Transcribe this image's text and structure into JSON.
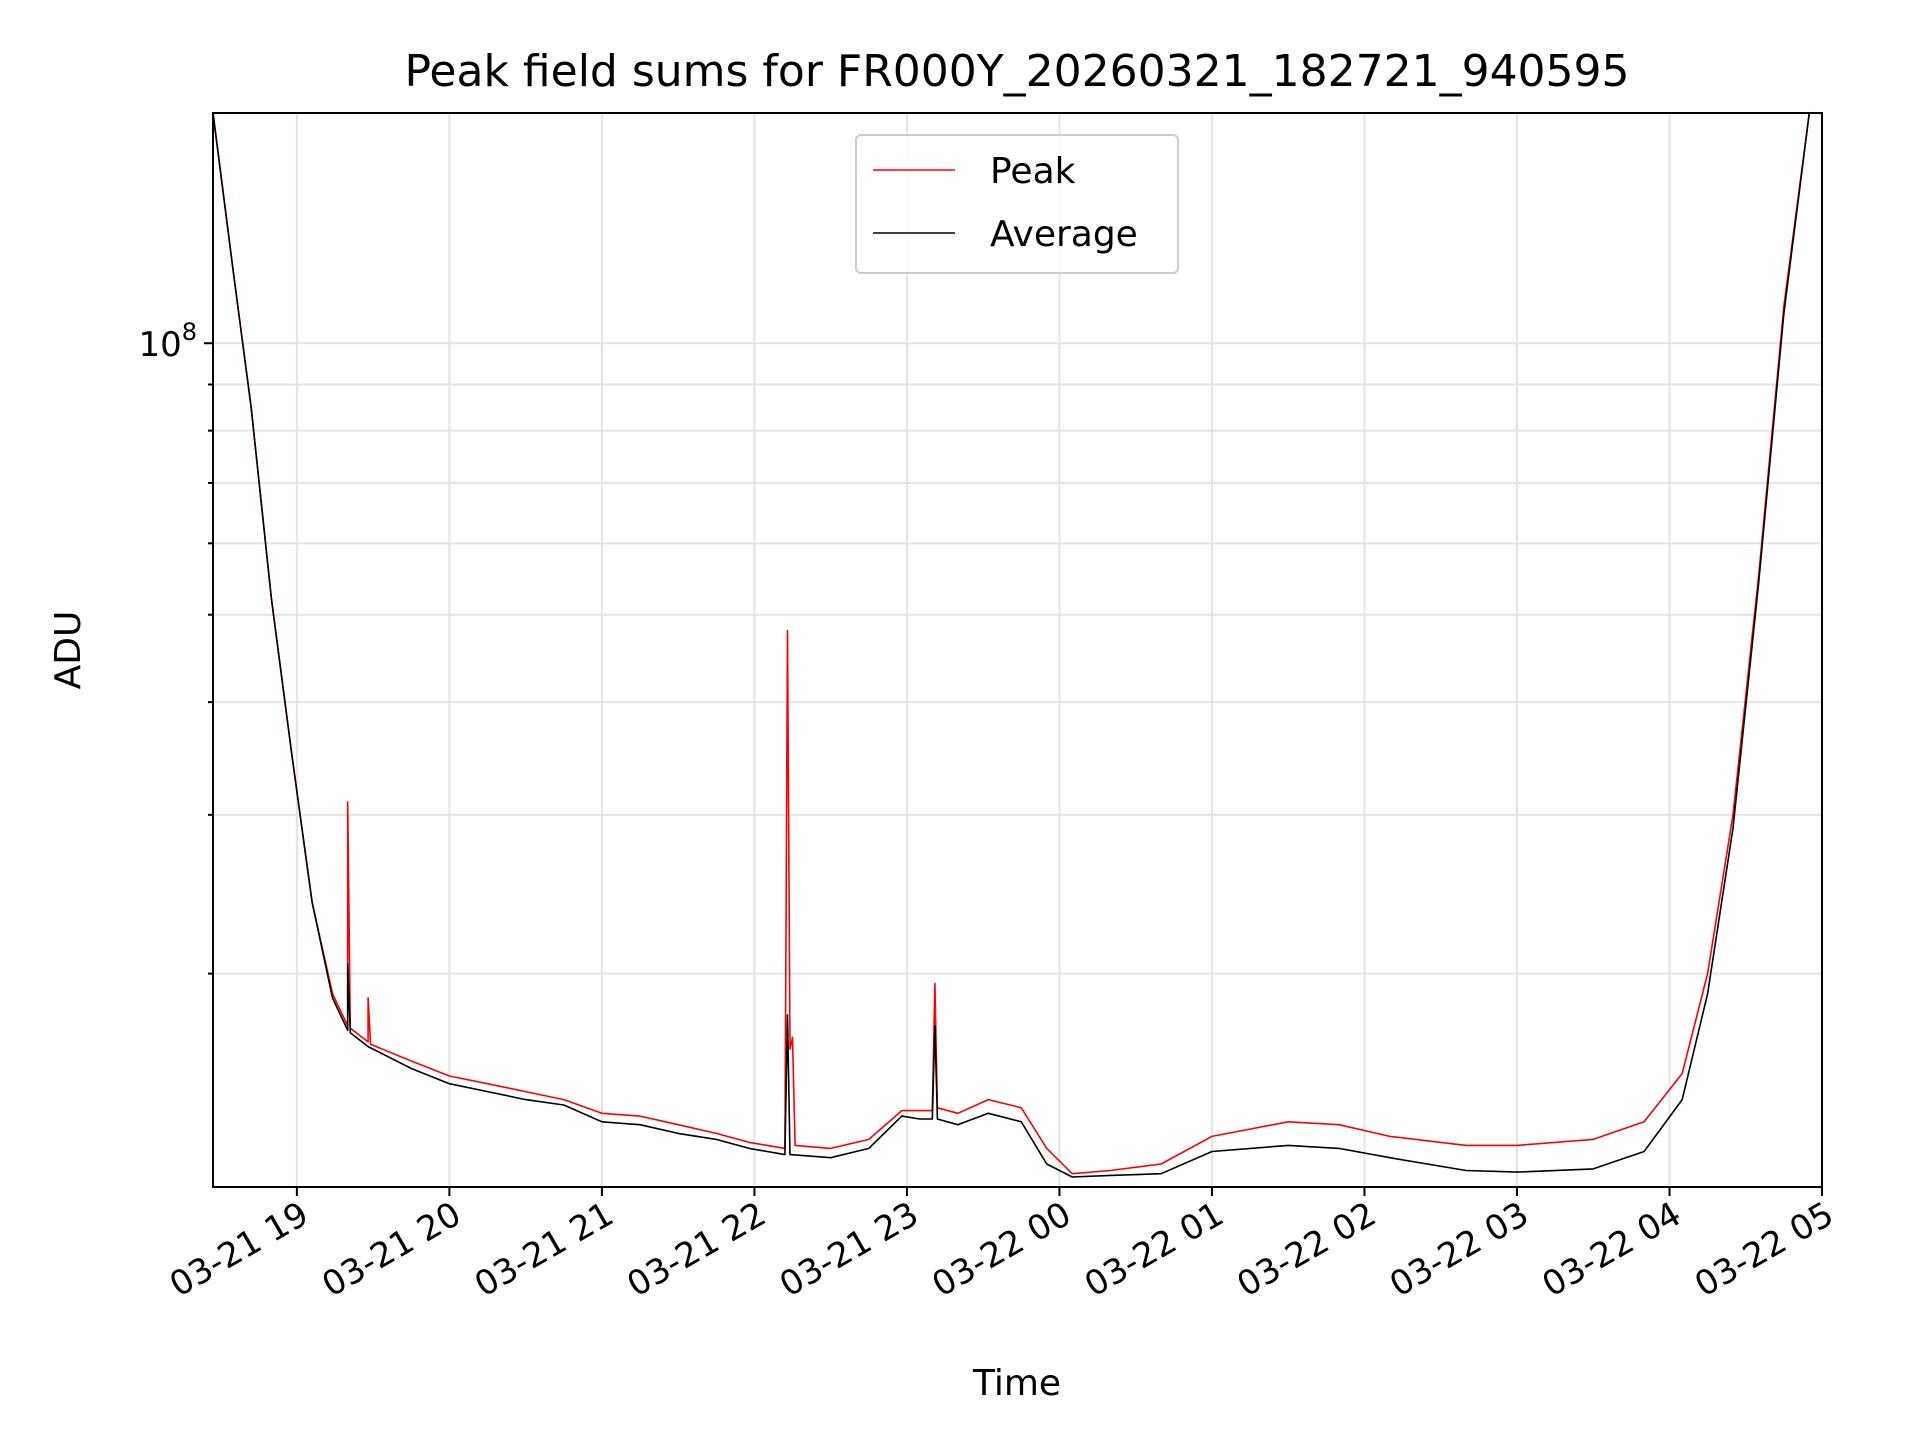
{
  "chart_data": {
    "type": "line",
    "title": "Peak field sums for FR000Y_20260321_182721_940595",
    "xlabel": "Time",
    "ylabel": "ADU",
    "yscale": "log",
    "grid": true,
    "legend_placement": "upper center",
    "xlim": [
      "2026-03-21 18:27",
      "2026-03-22 05:00"
    ],
    "ylim": [
      11600000,
      180000000
    ],
    "x_tick_labels": [
      "03-21 19",
      "03-21 20",
      "03-21 21",
      "03-21 22",
      "03-21 23",
      "03-22 00",
      "03-22 01",
      "03-22 02",
      "03-22 03",
      "03-22 04",
      "03-22 05"
    ],
    "y_tick_labels": [
      {
        "base": "10",
        "exp": "8",
        "value": 100000000
      }
    ],
    "series": [
      {
        "name": "Peak",
        "color": "#ff0000",
        "points": [
          [
            "2026-03-21 18:27",
            180000000
          ],
          [
            "2026-03-21 18:35",
            120000000
          ],
          [
            "2026-03-21 18:42",
            85000000
          ],
          [
            "2026-03-21 18:50",
            52000000
          ],
          [
            "2026-03-21 18:58",
            35000000
          ],
          [
            "2026-03-21 19:06",
            24000000
          ],
          [
            "2026-03-21 19:14",
            19000000
          ],
          [
            "2026-03-21 19:20",
            17500000
          ],
          [
            "2026-03-21 19:20",
            31000000
          ],
          [
            "2026-03-21 19:21",
            17400000
          ],
          [
            "2026-03-21 19:28",
            16800000
          ],
          [
            "2026-03-21 19:28",
            18800000
          ],
          [
            "2026-03-21 19:29",
            16700000
          ],
          [
            "2026-03-21 19:45",
            16000000
          ],
          [
            "2026-03-21 20:00",
            15400000
          ],
          [
            "2026-03-21 20:15",
            15100000
          ],
          [
            "2026-03-21 20:30",
            14800000
          ],
          [
            "2026-03-21 20:45",
            14500000
          ],
          [
            "2026-03-21 21:00",
            14000000
          ],
          [
            "2026-03-21 21:15",
            13900000
          ],
          [
            "2026-03-21 21:30",
            13600000
          ],
          [
            "2026-03-21 21:45",
            13300000
          ],
          [
            "2026-03-21 21:58",
            13000000
          ],
          [
            "2026-03-21 22:05",
            12900000
          ],
          [
            "2026-03-21 22:12",
            12800000
          ],
          [
            "2026-03-21 22:13",
            48000000
          ],
          [
            "2026-03-21 22:14",
            16500000
          ],
          [
            "2026-03-21 22:15",
            17000000
          ],
          [
            "2026-03-21 22:16",
            12900000
          ],
          [
            "2026-03-21 22:30",
            12800000
          ],
          [
            "2026-03-21 22:45",
            13100000
          ],
          [
            "2026-03-21 22:58",
            14100000
          ],
          [
            "2026-03-21 23:05",
            14100000
          ],
          [
            "2026-03-21 23:10",
            14100000
          ],
          [
            "2026-03-21 23:11",
            19500000
          ],
          [
            "2026-03-21 23:12",
            14200000
          ],
          [
            "2026-03-21 23:20",
            14000000
          ],
          [
            "2026-03-21 23:32",
            14500000
          ],
          [
            "2026-03-21 23:45",
            14200000
          ],
          [
            "2026-03-21 23:55",
            12800000
          ],
          [
            "2026-03-22 00:05",
            12000000
          ],
          [
            "2026-03-22 00:20",
            12100000
          ],
          [
            "2026-03-22 00:40",
            12300000
          ],
          [
            "2026-03-22 01:00",
            13200000
          ],
          [
            "2026-03-22 01:30",
            13700000
          ],
          [
            "2026-03-22 01:50",
            13600000
          ],
          [
            "2026-03-22 02:10",
            13200000
          ],
          [
            "2026-03-22 02:40",
            12900000
          ],
          [
            "2026-03-22 03:00",
            12900000
          ],
          [
            "2026-03-22 03:30",
            13100000
          ],
          [
            "2026-03-22 03:50",
            13700000
          ],
          [
            "2026-03-22 04:05",
            15500000
          ],
          [
            "2026-03-22 04:15",
            20000000
          ],
          [
            "2026-03-22 04:25",
            30000000
          ],
          [
            "2026-03-22 04:35",
            55000000
          ],
          [
            "2026-03-22 04:45",
            110000000
          ],
          [
            "2026-03-22 04:55",
            180000000
          ]
        ]
      },
      {
        "name": "Average",
        "color": "#000000",
        "points": [
          [
            "2026-03-21 18:27",
            180000000
          ],
          [
            "2026-03-21 18:35",
            120000000
          ],
          [
            "2026-03-21 18:42",
            85000000
          ],
          [
            "2026-03-21 18:50",
            52000000
          ],
          [
            "2026-03-21 18:58",
            35000000
          ],
          [
            "2026-03-21 19:06",
            24000000
          ],
          [
            "2026-03-21 19:14",
            18800000
          ],
          [
            "2026-03-21 19:20",
            17300000
          ],
          [
            "2026-03-21 19:20",
            20500000
          ],
          [
            "2026-03-21 19:21",
            17200000
          ],
          [
            "2026-03-21 19:28",
            16600000
          ],
          [
            "2026-03-21 19:45",
            15700000
          ],
          [
            "2026-03-21 20:00",
            15100000
          ],
          [
            "2026-03-21 20:15",
            14800000
          ],
          [
            "2026-03-21 20:30",
            14500000
          ],
          [
            "2026-03-21 20:45",
            14300000
          ],
          [
            "2026-03-21 21:00",
            13700000
          ],
          [
            "2026-03-21 21:15",
            13600000
          ],
          [
            "2026-03-21 21:30",
            13300000
          ],
          [
            "2026-03-21 21:45",
            13100000
          ],
          [
            "2026-03-21 21:58",
            12800000
          ],
          [
            "2026-03-21 22:05",
            12700000
          ],
          [
            "2026-03-21 22:12",
            12600000
          ],
          [
            "2026-03-21 22:13",
            18000000
          ],
          [
            "2026-03-21 22:14",
            12600000
          ],
          [
            "2026-03-21 22:30",
            12500000
          ],
          [
            "2026-03-21 22:45",
            12800000
          ],
          [
            "2026-03-21 22:58",
            13900000
          ],
          [
            "2026-03-21 23:05",
            13800000
          ],
          [
            "2026-03-21 23:10",
            13800000
          ],
          [
            "2026-03-21 23:11",
            17500000
          ],
          [
            "2026-03-21 23:12",
            13800000
          ],
          [
            "2026-03-21 23:20",
            13600000
          ],
          [
            "2026-03-21 23:32",
            14000000
          ],
          [
            "2026-03-21 23:45",
            13700000
          ],
          [
            "2026-03-21 23:55",
            12300000
          ],
          [
            "2026-03-22 00:05",
            11900000
          ],
          [
            "2026-03-22 00:20",
            11950000
          ],
          [
            "2026-03-22 00:40",
            12000000
          ],
          [
            "2026-03-22 01:00",
            12700000
          ],
          [
            "2026-03-22 01:30",
            12900000
          ],
          [
            "2026-03-22 01:50",
            12800000
          ],
          [
            "2026-03-22 02:10",
            12500000
          ],
          [
            "2026-03-22 02:40",
            12100000
          ],
          [
            "2026-03-22 03:00",
            12050000
          ],
          [
            "2026-03-22 03:30",
            12150000
          ],
          [
            "2026-03-22 03:50",
            12700000
          ],
          [
            "2026-03-22 04:05",
            14500000
          ],
          [
            "2026-03-22 04:15",
            19000000
          ],
          [
            "2026-03-22 04:25",
            29000000
          ],
          [
            "2026-03-22 04:35",
            54000000
          ],
          [
            "2026-03-22 04:45",
            108000000
          ],
          [
            "2026-03-22 04:55",
            180000000
          ]
        ]
      }
    ]
  }
}
